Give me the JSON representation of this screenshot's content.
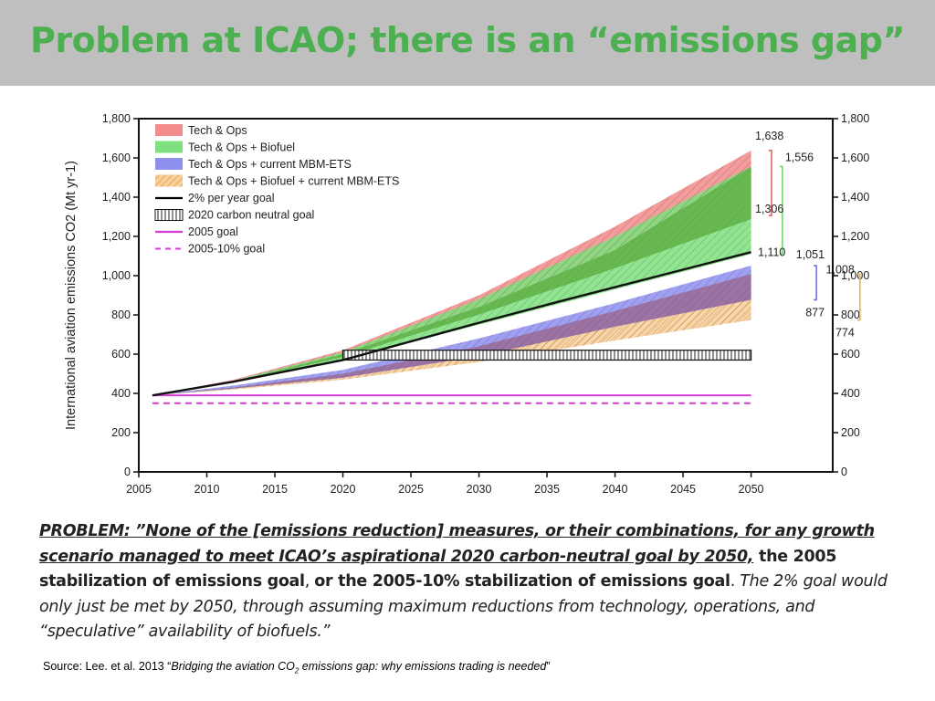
{
  "slide": {
    "title": "Problem at ICAO; there is an “emissions gap”"
  },
  "problem": {
    "lead": "PROBLEM:",
    "quote_underlined": " ”None of the [emissions reduction] measures, or their combinations, for any growth scenario managed to meet ICAO’s aspirational 2020 carbon-neutral goal by 2050,",
    "bold_1": " the 2005 stabilization of emissions goal",
    "comma": ", ",
    "bold_2": "or the 2005-10% stabilization of emissions goal",
    "period": ".",
    "italic_tail": " The 2% goal would only just be met by 2050, through assuming maximum reductions from technology, operations, and “speculative” availability of biofuels.”"
  },
  "source": {
    "prefix": "Source: Lee. et al. 2013 “",
    "title_a": "Bridging the aviation CO",
    "sub": "2",
    "title_b": " emissions gap: why emissions trading is needed",
    "suffix": "”"
  },
  "chart_data": {
    "type": "area",
    "ylabel": "International aviation emissions CO2 (Mt yr-1)",
    "xlim": [
      2005,
      2050
    ],
    "ylim": [
      0,
      1800
    ],
    "x_ticks": [
      2005,
      2010,
      2015,
      2020,
      2025,
      2030,
      2035,
      2040,
      2045,
      2050
    ],
    "y_ticks": [
      0,
      200,
      400,
      600,
      800,
      1000,
      1200,
      1400,
      1600,
      1800
    ],
    "y_tick_labels": [
      "0",
      "200",
      "400",
      "600",
      "800",
      "1,000",
      "1,200",
      "1,400",
      "1,600",
      "1,800"
    ],
    "legend_position": "top-left",
    "legend": [
      {
        "label": "Tech & Ops",
        "color": "#f28b8b",
        "style": "fill"
      },
      {
        "label": "Tech & Ops + Biofuel",
        "color": "#7ee07e",
        "style": "fill"
      },
      {
        "label": "Tech & Ops + current MBM-ETS",
        "color": "#8f8ff0",
        "style": "fill"
      },
      {
        "label": "Tech & Ops + Biofuel + current MBM-ETS",
        "color": "#f5c07a",
        "style": "hatch"
      },
      {
        "label": "2% per year goal",
        "color": "#000000",
        "style": "line"
      },
      {
        "label": "2020 carbon neutral goal",
        "color": "#000000",
        "style": "box"
      },
      {
        "label": "2005 goal",
        "color": "#d63bd6",
        "style": "line"
      },
      {
        "label": "2005-10% goal",
        "color": "#d63bd6",
        "style": "dash"
      }
    ],
    "series": [
      {
        "name": "Tech & Ops",
        "x": [
          2006,
          2012,
          2020,
          2030,
          2040,
          2050
        ],
        "upper": [
          390,
          470,
          620,
          900,
          1250,
          1638
        ],
        "lower": [
          390,
          460,
          600,
          840,
          1130,
          1556
        ],
        "color": "#f28b8b"
      },
      {
        "name": "Tech & Ops + Biofuel",
        "x": [
          2006,
          2012,
          2020,
          2030,
          2040,
          2050
        ],
        "upper": [
          390,
          465,
          610,
          880,
          1200,
          1556
        ],
        "lower": [
          390,
          455,
          570,
          750,
          930,
          1110
        ],
        "color": "#7ee07e"
      },
      {
        "name": "Tech & Ops + current MBM-ETS",
        "x": [
          2006,
          2012,
          2020,
          2030,
          2040,
          2050
        ],
        "upper": [
          390,
          440,
          520,
          680,
          860,
          1051
        ],
        "lower": [
          390,
          425,
          480,
          590,
          740,
          877
        ],
        "color": "#8f8ff0"
      },
      {
        "name": "Tech & Ops + Biofuel + current MBM-ETS",
        "x": [
          2006,
          2012,
          2020,
          2030,
          2040,
          2050
        ],
        "upper": [
          390,
          430,
          500,
          640,
          820,
          1008
        ],
        "lower": [
          390,
          420,
          470,
          560,
          670,
          774
        ],
        "color": "#f5c07a"
      }
    ],
    "goal_2pct": {
      "x": [
        2006,
        2012,
        2020,
        2030,
        2036,
        2050
      ],
      "y": [
        390,
        460,
        570,
        760,
        870,
        1120
      ]
    },
    "carbon_neutral": {
      "x0": 2020,
      "x1": 2050,
      "y0": 570,
      "y1": 620
    },
    "goal_2005": 390,
    "goal_2005_10": 350,
    "annotations": [
      {
        "label": "1,638",
        "value": 1638
      },
      {
        "label": "1,556",
        "value": 1556
      },
      {
        "label": "1,306",
        "value": 1306
      },
      {
        "label": "1,110",
        "value": 1110
      },
      {
        "label": "1,051",
        "value": 1051
      },
      {
        "label": "877",
        "value": 877
      },
      {
        "label": "1,008",
        "value": 1008
      },
      {
        "label": "774",
        "value": 774
      }
    ]
  }
}
